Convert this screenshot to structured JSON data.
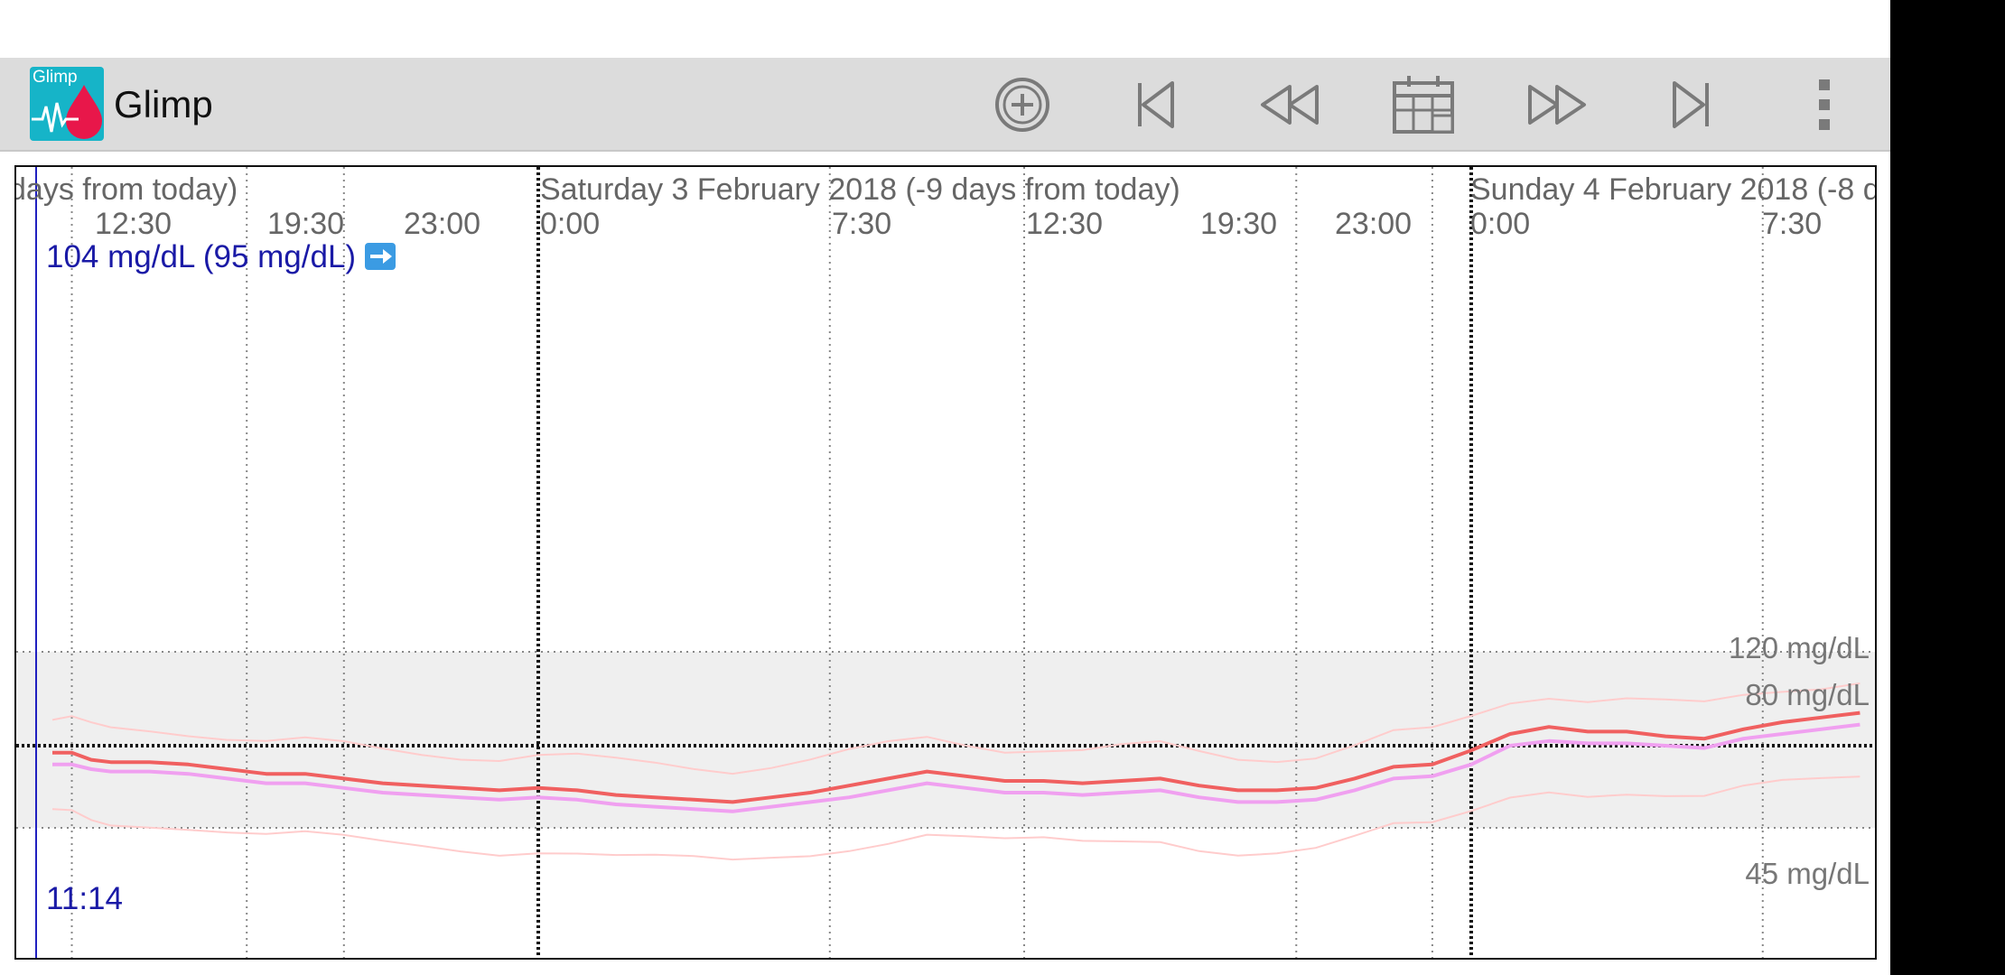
{
  "app": {
    "title": "Glimp",
    "logo_text": "Glimp",
    "colors": {
      "app_bar": "#dcdcdc",
      "logo_bg": "#16b4c8",
      "logo_drop": "#e8174a"
    }
  },
  "toolbar": {
    "buttons": [
      {
        "name": "add-button",
        "icon": "plus-circle-icon"
      },
      {
        "name": "first-button",
        "icon": "skip-first-icon"
      },
      {
        "name": "rewind-button",
        "icon": "rewind-icon"
      },
      {
        "name": "calendar-button",
        "icon": "calendar-icon"
      },
      {
        "name": "fast-forward-button",
        "icon": "fast-forward-icon"
      },
      {
        "name": "last-button",
        "icon": "skip-last-icon"
      },
      {
        "name": "overflow-menu-button",
        "icon": "more-vert-icon"
      }
    ]
  },
  "chart": {
    "day_labels": [
      "days from today)",
      "Saturday 3 February 2018 (-9 days from today)",
      "Sunday 4 February 2018 (-8 d"
    ],
    "time_labels": [
      "12:30",
      "19:30",
      "23:00",
      "0:00",
      "7:30",
      "12:30",
      "19:30",
      "23:00",
      "0:00",
      "7:30"
    ],
    "y_labels": [
      "120 mg/dL",
      "80 mg/dL",
      "45 mg/dL"
    ],
    "current_reading": "104 mg/dL (95 mg/dL)",
    "current_trend_icon": "arrow-right-icon",
    "cursor_time": "11:14"
  },
  "chart_data": {
    "type": "line",
    "y_unit": "mg/dL",
    "target_range": [
      45,
      120
    ],
    "reference_line": 80,
    "ylim": [
      0,
      150
    ],
    "grid": true,
    "colors": {
      "glucose": "#f06060",
      "raw": "#f0a0f0",
      "min_max": "#ffcccc",
      "band": "#efefef",
      "cursor": "#2020c0"
    },
    "x_hours": [
      -12.5,
      -12,
      -11.5,
      -11,
      -10,
      -9,
      -8,
      -7,
      -6,
      -5,
      -4,
      -3,
      -2,
      -1,
      0,
      1,
      2,
      3,
      4,
      5,
      6,
      7,
      8,
      9,
      10,
      11,
      12,
      13,
      14,
      15,
      16,
      17,
      18,
      19,
      20,
      21,
      22,
      23,
      24,
      25,
      26,
      27,
      28,
      29,
      30,
      31,
      32,
      33,
      34
    ],
    "series": [
      {
        "name": "",
        "values": [
          77,
          77,
          74,
          73,
          73,
          72,
          70,
          68,
          68,
          66,
          64,
          63,
          62,
          61,
          62,
          61,
          59,
          58,
          57,
          56,
          58,
          60,
          63,
          66,
          69,
          67,
          65,
          65,
          64,
          65,
          66,
          63,
          61,
          61,
          62,
          66,
          71,
          72,
          78,
          85,
          88,
          86,
          86,
          84,
          83,
          87,
          90,
          92,
          94
        ]
      },
      {
        "name": "",
        "values": [
          72,
          72,
          70,
          69,
          69,
          68,
          66,
          64,
          64,
          62,
          60,
          59,
          58,
          57,
          58,
          57,
          55,
          54,
          53,
          52,
          54,
          56,
          58,
          61,
          64,
          62,
          60,
          60,
          59,
          60,
          61,
          58,
          56,
          56,
          57,
          61,
          66,
          67,
          72,
          80,
          82,
          81,
          81,
          80,
          79,
          83,
          85,
          87,
          89
        ]
      }
    ]
  }
}
